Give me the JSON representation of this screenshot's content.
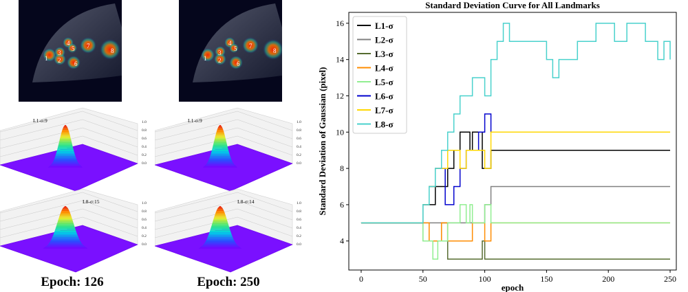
{
  "figure": {
    "left": {
      "columns": [
        {
          "epoch_label": "Epoch: 126",
          "surfaces": [
            {
              "annotation": "L1-σ:9",
              "sigma": 9
            },
            {
              "annotation": "L8-σ:15",
              "sigma": 15
            }
          ]
        },
        {
          "epoch_label": "Epoch: 250",
          "surfaces": [
            {
              "annotation": "L1-σ:9",
              "sigma": 9
            },
            {
              "annotation": "L8-σ:14",
              "sigma": 14
            }
          ]
        }
      ],
      "zaxis_ticks": [
        "0.0",
        "0.2",
        "0.4",
        "0.6",
        "0.8",
        "1.0"
      ],
      "landmark_labels": [
        "1",
        "2",
        "3",
        "4",
        "5",
        "6",
        "7",
        "8"
      ]
    }
  },
  "chart_data": {
    "type": "line",
    "title": "Standard Deviation Curve for All Landmarks",
    "xlabel": "epoch",
    "ylabel": "Standard Deviation of Gaussian (pixel)",
    "xlim": [
      -10,
      255
    ],
    "ylim": [
      2.4,
      16.6
    ],
    "xticks": [
      0,
      50,
      100,
      150,
      200,
      250
    ],
    "yticks": [
      4,
      6,
      8,
      10,
      12,
      14,
      16
    ],
    "legend_position": "top-left",
    "series": [
      {
        "name": "L1-σ",
        "color": "#000000",
        "x": [
          0,
          45,
          50,
          55,
          60,
          65,
          70,
          75,
          78,
          80,
          85,
          88,
          90,
          95,
          98,
          100,
          105,
          250
        ],
        "y": [
          5,
          5,
          6,
          6,
          7,
          7,
          8,
          9,
          9,
          10,
          10,
          9,
          10,
          10,
          8,
          8,
          9,
          9
        ]
      },
      {
        "name": "L2-σ",
        "color": "#808080",
        "x": [
          0,
          45,
          50,
          55,
          60,
          65,
          70,
          75,
          80,
          85,
          90,
          95,
          100,
          105,
          250
        ],
        "y": [
          5,
          5,
          5,
          5,
          5,
          5,
          5,
          5,
          5,
          5,
          5,
          5,
          6,
          7,
          7
        ]
      },
      {
        "name": "L3-σ",
        "color": "#556b2f",
        "x": [
          0,
          45,
          50,
          55,
          60,
          65,
          70,
          80,
          90,
          98,
          100,
          105,
          250
        ],
        "y": [
          5,
          5,
          4,
          4,
          4,
          5,
          3,
          3,
          3,
          4,
          3,
          3,
          3
        ]
      },
      {
        "name": "L4-σ",
        "color": "#ff8c00",
        "x": [
          0,
          45,
          50,
          55,
          60,
          65,
          70,
          75,
          80,
          85,
          90,
          95,
          100,
          105,
          250
        ],
        "y": [
          5,
          5,
          5,
          4,
          4,
          5,
          4,
          4,
          4,
          4,
          5,
          5,
          4,
          5,
          5
        ]
      },
      {
        "name": "L5-σ",
        "color": "#90ee90",
        "x": [
          0,
          45,
          50,
          55,
          58,
          62,
          65,
          70,
          75,
          80,
          85,
          88,
          90,
          95,
          100,
          105,
          250
        ],
        "y": [
          5,
          5,
          4,
          4,
          3,
          4,
          4,
          5,
          5,
          6,
          5,
          6,
          5,
          5,
          6,
          5,
          5
        ]
      },
      {
        "name": "L6-σ",
        "color": "#0000cd",
        "x": [
          0,
          45,
          50,
          55,
          60,
          65,
          68,
          70,
          75,
          80,
          85,
          90,
          95,
          100,
          105,
          250
        ],
        "y": [
          5,
          5,
          6,
          7,
          8,
          8,
          6,
          6,
          7,
          8,
          9,
          9,
          10,
          11,
          10,
          10
        ]
      },
      {
        "name": "L7-σ",
        "color": "#ffd700",
        "x": [
          0,
          45,
          50,
          55,
          60,
          65,
          70,
          75,
          80,
          85,
          90,
          95,
          100,
          105,
          250
        ],
        "y": [
          5,
          5,
          6,
          7,
          8,
          8,
          9,
          9,
          8,
          9,
          9,
          9,
          8,
          10,
          10
        ]
      },
      {
        "name": "L8-σ",
        "color": "#48d1cc",
        "x": [
          0,
          45,
          50,
          55,
          60,
          65,
          70,
          75,
          80,
          85,
          90,
          95,
          100,
          105,
          110,
          115,
          120,
          130,
          140,
          150,
          155,
          160,
          170,
          175,
          180,
          185,
          190,
          195,
          200,
          205,
          210,
          215,
          220,
          225,
          230,
          235,
          240,
          245,
          250
        ],
        "y": [
          5,
          5,
          6,
          7,
          8,
          9,
          10,
          11,
          12,
          12,
          13,
          13,
          12,
          14,
          15,
          16,
          15,
          15,
          15,
          14,
          13,
          14,
          14,
          15,
          15,
          15,
          16,
          16,
          16,
          15,
          15,
          16,
          16,
          16,
          15,
          15,
          14,
          15,
          14
        ]
      }
    ]
  }
}
